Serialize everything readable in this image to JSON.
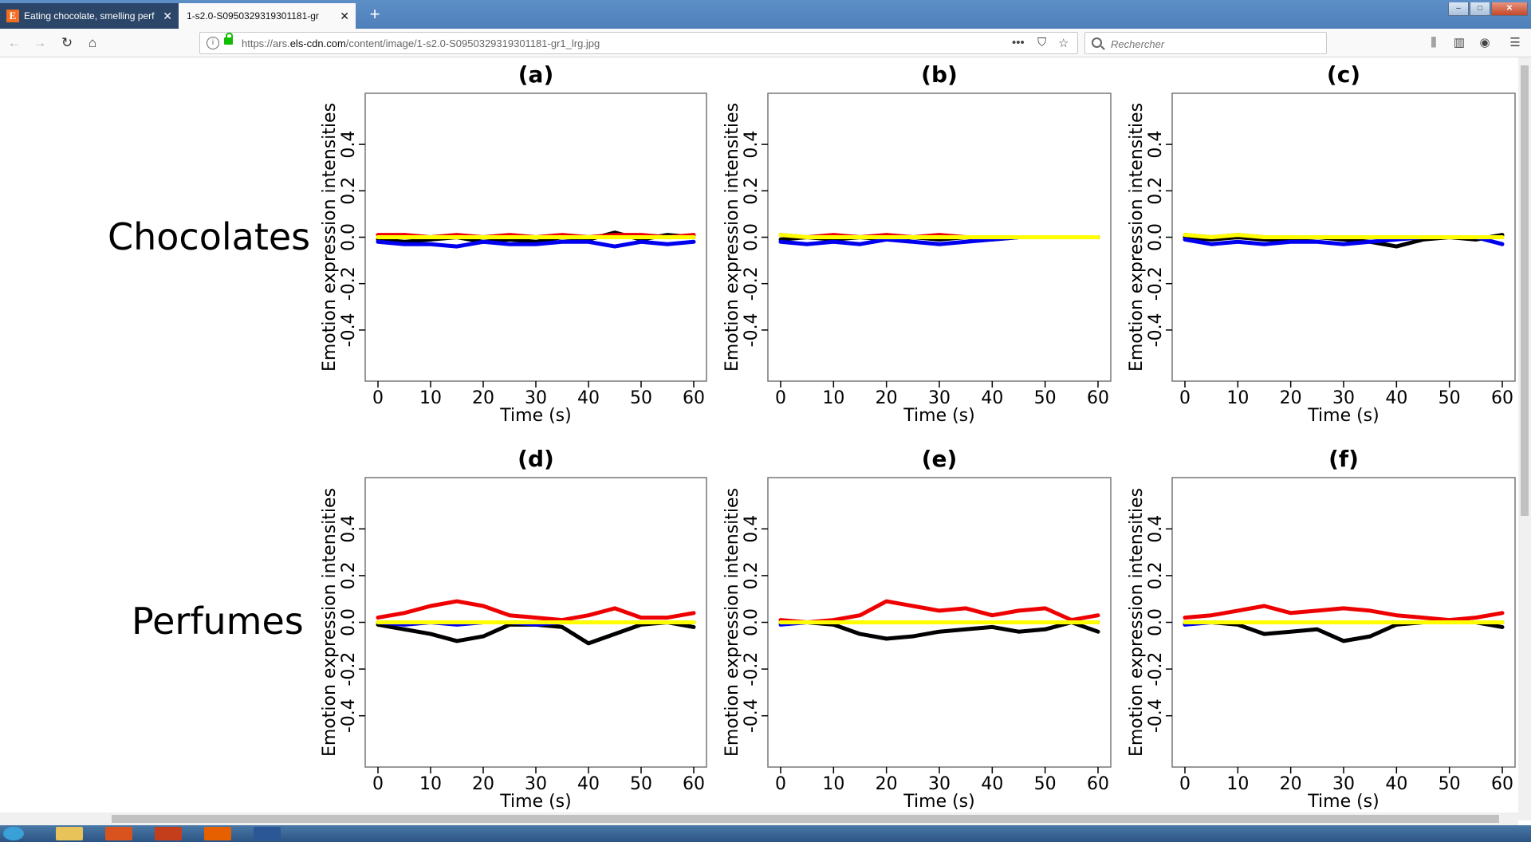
{
  "browser": {
    "tabs": [
      {
        "label": "Eating chocolate, smelling perf",
        "favicon": "E",
        "active": false
      },
      {
        "label": "1-s2.0-S0950329319301181-gr1_lrg.j",
        "active": true
      }
    ],
    "url_prefix": "https://ars.",
    "url_host": "els-cdn.com",
    "url_path": "/content/image/1-s2.0-S0950329319301181-gr1_lrg.jpg",
    "search_placeholder": "Rechercher",
    "toolbar_icons": [
      "library-icon",
      "sidebar-icon",
      "account-icon",
      "menu-icon"
    ]
  },
  "figure": {
    "row_labels": [
      "Chocolates",
      "Perfumes"
    ],
    "colors": {
      "black": "#000000",
      "blue": "#0000ee",
      "red": "#ee0000",
      "yellow": "#ffff00"
    }
  },
  "chart_data": [
    {
      "type": "line",
      "title": "(a)",
      "xlabel": "Time (s)",
      "ylabel": "Emotion expression intensities",
      "xlim": [
        0,
        60
      ],
      "ylim": [
        -0.5,
        0.5
      ],
      "xticks": [
        0,
        10,
        20,
        30,
        40,
        50,
        60
      ],
      "yticks": [
        -0.4,
        -0.2,
        0.0,
        0.2,
        0.4
      ],
      "x": [
        0,
        5,
        10,
        15,
        20,
        25,
        30,
        35,
        40,
        45,
        50,
        55,
        60
      ],
      "series": [
        {
          "color": "#000000",
          "values": [
            -0.01,
            -0.02,
            -0.01,
            0.0,
            -0.02,
            -0.01,
            -0.02,
            0.0,
            -0.01,
            0.02,
            -0.01,
            0.01,
            0.0
          ]
        },
        {
          "color": "#0000ee",
          "values": [
            -0.02,
            -0.03,
            -0.03,
            -0.04,
            -0.02,
            -0.03,
            -0.03,
            -0.02,
            -0.02,
            -0.04,
            -0.02,
            -0.03,
            -0.02
          ]
        },
        {
          "color": "#ee0000",
          "values": [
            0.01,
            0.01,
            0.0,
            0.01,
            0.0,
            0.01,
            0.0,
            0.01,
            0.0,
            0.01,
            0.01,
            0.0,
            0.01
          ]
        },
        {
          "color": "#ffff00",
          "values": [
            0,
            0,
            0,
            0,
            0,
            0,
            0,
            0,
            0,
            0,
            0,
            0,
            0
          ]
        }
      ]
    },
    {
      "type": "line",
      "title": "(b)",
      "xlabel": "Time (s)",
      "ylabel": "Emotion expression intensities",
      "xlim": [
        0,
        60
      ],
      "ylim": [
        -0.5,
        0.5
      ],
      "xticks": [
        0,
        10,
        20,
        30,
        40,
        50,
        60
      ],
      "yticks": [
        -0.4,
        -0.2,
        0.0,
        0.2,
        0.4
      ],
      "x": [
        0,
        5,
        10,
        15,
        20,
        25,
        30,
        35,
        40,
        45,
        50,
        55,
        60
      ],
      "series": [
        {
          "color": "#000000",
          "values": [
            -0.01,
            0.0,
            -0.01,
            0.0,
            -0.01,
            0.0,
            -0.01,
            0.0,
            -0.01,
            0.0,
            0.0,
            0.0,
            0.0
          ]
        },
        {
          "color": "#0000ee",
          "values": [
            -0.02,
            -0.03,
            -0.02,
            -0.03,
            -0.01,
            -0.02,
            -0.03,
            -0.02,
            -0.01,
            0.0,
            0.0,
            0.0,
            0.0
          ]
        },
        {
          "color": "#ee0000",
          "values": [
            0.01,
            0.0,
            0.01,
            0.0,
            0.01,
            0.0,
            0.01,
            0.0,
            0.0,
            0.0,
            0.0,
            0.0,
            0.0
          ]
        },
        {
          "color": "#ffff00",
          "values": [
            0.01,
            0,
            0,
            0,
            0,
            0,
            0,
            0,
            0,
            0,
            0,
            0,
            0
          ]
        }
      ]
    },
    {
      "type": "line",
      "title": "(c)",
      "xlabel": "Time (s)",
      "ylabel": "Emotion expression intensities",
      "xlim": [
        0,
        60
      ],
      "ylim": [
        -0.5,
        0.5
      ],
      "xticks": [
        0,
        10,
        20,
        30,
        40,
        50,
        60
      ],
      "yticks": [
        -0.4,
        -0.2,
        0.0,
        0.2,
        0.4
      ],
      "x": [
        0,
        5,
        10,
        15,
        20,
        25,
        30,
        35,
        40,
        45,
        50,
        55,
        60
      ],
      "series": [
        {
          "color": "#000000",
          "values": [
            0.0,
            -0.01,
            0.0,
            -0.01,
            -0.01,
            0.0,
            -0.01,
            -0.02,
            -0.04,
            -0.01,
            0.0,
            -0.01,
            0.01
          ]
        },
        {
          "color": "#0000ee",
          "values": [
            -0.01,
            -0.03,
            -0.02,
            -0.03,
            -0.02,
            -0.02,
            -0.03,
            -0.02,
            -0.01,
            0.0,
            0.0,
            0.0,
            -0.03
          ]
        },
        {
          "color": "#ee0000",
          "values": [
            0.01,
            0.0,
            0.01,
            0.0,
            0.0,
            0.0,
            0.0,
            0.0,
            0.0,
            0.0,
            0.0,
            0.0,
            0.0
          ]
        },
        {
          "color": "#ffff00",
          "values": [
            0.01,
            0,
            0.01,
            0,
            0,
            0,
            0,
            0,
            0,
            0,
            0,
            0,
            0
          ]
        }
      ]
    },
    {
      "type": "line",
      "title": "(d)",
      "xlabel": "Time (s)",
      "ylabel": "Emotion expression intensities",
      "xlim": [
        0,
        60
      ],
      "ylim": [
        -0.5,
        0.5
      ],
      "xticks": [
        0,
        10,
        20,
        30,
        40,
        50,
        60
      ],
      "yticks": [
        -0.4,
        -0.2,
        0.0,
        0.2,
        0.4
      ],
      "x": [
        0,
        5,
        10,
        15,
        20,
        25,
        30,
        35,
        40,
        45,
        50,
        55,
        60
      ],
      "series": [
        {
          "color": "#000000",
          "values": [
            -0.01,
            -0.03,
            -0.05,
            -0.08,
            -0.06,
            -0.01,
            -0.01,
            -0.02,
            -0.09,
            -0.05,
            -0.01,
            0.0,
            -0.02
          ]
        },
        {
          "color": "#0000ee",
          "values": [
            0.0,
            -0.01,
            0.0,
            -0.01,
            0.0,
            0.0,
            -0.01,
            0.0,
            0.0,
            0.0,
            0.0,
            0.0,
            0.0
          ]
        },
        {
          "color": "#ee0000",
          "values": [
            0.02,
            0.04,
            0.07,
            0.09,
            0.07,
            0.03,
            0.02,
            0.01,
            0.03,
            0.06,
            0.02,
            0.02,
            0.04
          ]
        },
        {
          "color": "#ffff00",
          "values": [
            0,
            0,
            0,
            0,
            0,
            0,
            0,
            0,
            0,
            0,
            0,
            0,
            0
          ]
        }
      ]
    },
    {
      "type": "line",
      "title": "(e)",
      "xlabel": "Time (s)",
      "ylabel": "Emotion expression intensities",
      "xlim": [
        0,
        60
      ],
      "ylim": [
        -0.5,
        0.5
      ],
      "xticks": [
        0,
        10,
        20,
        30,
        40,
        50,
        60
      ],
      "yticks": [
        -0.4,
        -0.2,
        0.0,
        0.2,
        0.4
      ],
      "x": [
        0,
        5,
        10,
        15,
        20,
        25,
        30,
        35,
        40,
        45,
        50,
        55,
        60
      ],
      "series": [
        {
          "color": "#000000",
          "values": [
            0.0,
            0.0,
            -0.01,
            -0.05,
            -0.07,
            -0.06,
            -0.04,
            -0.03,
            -0.02,
            -0.04,
            -0.03,
            0.0,
            -0.04
          ]
        },
        {
          "color": "#0000ee",
          "values": [
            -0.01,
            0.0,
            0.0,
            0.0,
            0.0,
            0.0,
            0.0,
            0.0,
            0.0,
            0.0,
            0.0,
            0.0,
            0.0
          ]
        },
        {
          "color": "#ee0000",
          "values": [
            0.01,
            0.0,
            0.01,
            0.03,
            0.09,
            0.07,
            0.05,
            0.06,
            0.03,
            0.05,
            0.06,
            0.01,
            0.03
          ]
        },
        {
          "color": "#ffff00",
          "values": [
            0,
            0,
            0,
            0,
            0,
            0,
            0,
            0,
            0,
            0,
            0,
            0,
            0
          ]
        }
      ]
    },
    {
      "type": "line",
      "title": "(f)",
      "xlabel": "Time (s)",
      "ylabel": "Emotion expression intensities",
      "xlim": [
        0,
        60
      ],
      "ylim": [
        -0.5,
        0.5
      ],
      "xticks": [
        0,
        10,
        20,
        30,
        40,
        50,
        60
      ],
      "yticks": [
        -0.4,
        -0.2,
        0.0,
        0.2,
        0.4
      ],
      "x": [
        0,
        5,
        10,
        15,
        20,
        25,
        30,
        35,
        40,
        45,
        50,
        55,
        60
      ],
      "series": [
        {
          "color": "#000000",
          "values": [
            0.0,
            0.0,
            -0.01,
            -0.05,
            -0.04,
            -0.03,
            -0.08,
            -0.06,
            -0.01,
            0.0,
            0.0,
            0.0,
            -0.02
          ]
        },
        {
          "color": "#0000ee",
          "values": [
            -0.01,
            0.0,
            0.0,
            0.0,
            0.0,
            0.0,
            0.0,
            0.0,
            0.0,
            0.0,
            0.0,
            0.0,
            0.0
          ]
        },
        {
          "color": "#ee0000",
          "values": [
            0.02,
            0.03,
            0.05,
            0.07,
            0.04,
            0.05,
            0.06,
            0.05,
            0.03,
            0.02,
            0.01,
            0.02,
            0.04
          ]
        },
        {
          "color": "#ffff00",
          "values": [
            0,
            0,
            0,
            0,
            0,
            0,
            0,
            0,
            0,
            0,
            0,
            0,
            0
          ]
        }
      ]
    }
  ]
}
